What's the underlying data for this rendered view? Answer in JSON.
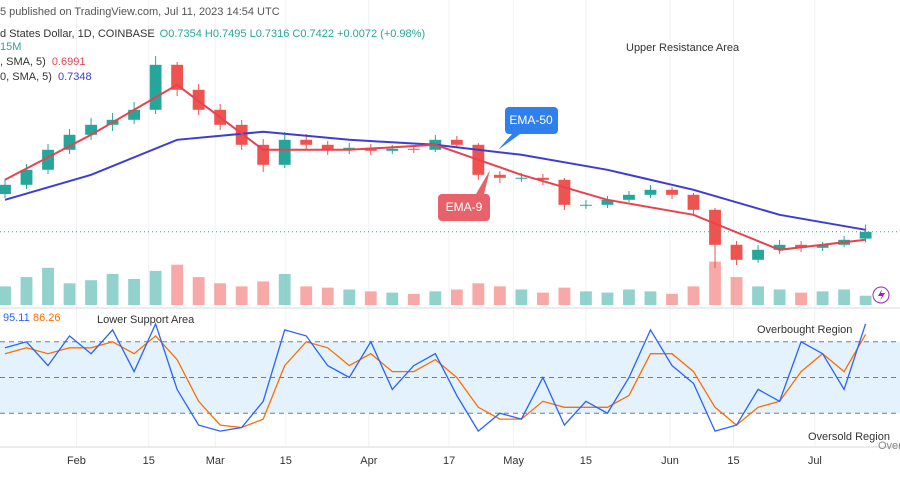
{
  "chart_data": {
    "type": "candlestick",
    "header": {
      "published": "5 published on TradingView.com, Jul 11, 2023 14:54 UTC",
      "symbol": "d States Dollar, 1D, COINBASE",
      "ohlc": "O0.7354 H0.7495 L0.7316 C0.7422 +0.0072 (+0.98%)",
      "volume": "15M",
      "ema_fast_label": ", SMA, 5)",
      "ema_fast_value": "0.6991",
      "ema_slow_label": "0, SMA, 5)",
      "ema_slow_value": "0.7348",
      "stoch_k_value": "95.11",
      "stoch_d_value": "86.26"
    },
    "annotations": {
      "upper": "Upper Resistance Area",
      "ema50": "EMA-50",
      "ema9": "EMA-9",
      "lower": "Lower Support Area",
      "overbought": "Overbought Region",
      "oversold": "Oversold Region",
      "cut": "Over"
    },
    "xlim": [
      0,
      40.9
    ],
    "xticks": [
      {
        "value": 3.32,
        "label": "Feb"
      },
      {
        "value": 6.68,
        "label": "15"
      },
      {
        "value": 9.77,
        "label": "Mar"
      },
      {
        "value": 13.05,
        "label": "15"
      },
      {
        "value": 16.91,
        "label": "Apr"
      },
      {
        "value": 20.64,
        "label": "17"
      },
      {
        "value": 23.64,
        "label": "May"
      },
      {
        "value": 27,
        "label": "15"
      },
      {
        "value": 30.91,
        "label": "Jun"
      },
      {
        "value": 33.86,
        "label": "15"
      },
      {
        "value": 37.64,
        "label": "Jul"
      }
    ],
    "ylim": [
      0.68,
      0.945
    ],
    "up_color": "#26a69a",
    "down_color": "#ef5350",
    "open": [
      0.78,
      0.7892,
      0.8042,
      0.8242,
      0.8392,
      0.8492,
      0.8542,
      0.8642,
      0.9092,
      0.8842,
      0.8642,
      0.8492,
      0.8292,
      0.8092,
      0.8342,
      0.8292,
      0.8242,
      0.8262,
      0.8232,
      0.8252,
      0.8242,
      0.8342,
      0.8292,
      0.7992,
      0.7962,
      0.7962,
      0.7942,
      0.7692,
      0.7692,
      0.7742,
      0.7792,
      0.7842,
      0.7792,
      0.7642,
      0.7292,
      0.7142,
      0.7242,
      0.7292,
      0.7262,
      0.7292,
      0.7354
    ],
    "high": [
      0.795,
      0.81,
      0.83,
      0.845,
      0.856,
      0.861,
      0.872,
      0.918,
      0.912,
      0.89,
      0.87,
      0.854,
      0.835,
      0.842,
      0.84,
      0.833,
      0.831,
      0.83,
      0.829,
      0.829,
      0.839,
      0.838,
      0.831,
      0.803,
      0.801,
      0.8,
      0.796,
      0.774,
      0.778,
      0.783,
      0.789,
      0.787,
      0.781,
      0.766,
      0.733,
      0.729,
      0.734,
      0.733,
      0.732,
      0.738,
      0.7495
    ],
    "low": [
      0.776,
      0.785,
      0.8,
      0.82,
      0.834,
      0.843,
      0.85,
      0.86,
      0.878,
      0.859,
      0.844,
      0.824,
      0.802,
      0.806,
      0.824,
      0.819,
      0.82,
      0.819,
      0.82,
      0.821,
      0.822,
      0.826,
      0.794,
      0.791,
      0.792,
      0.789,
      0.764,
      0.765,
      0.766,
      0.772,
      0.776,
      0.775,
      0.759,
      0.706,
      0.709,
      0.711,
      0.72,
      0.722,
      0.723,
      0.727,
      0.7316
    ],
    "close": [
      0.7892,
      0.8042,
      0.8242,
      0.8392,
      0.8492,
      0.8542,
      0.8642,
      0.9092,
      0.8842,
      0.8642,
      0.8492,
      0.8292,
      0.8092,
      0.8342,
      0.8292,
      0.8242,
      0.8262,
      0.8232,
      0.8252,
      0.8242,
      0.8342,
      0.8292,
      0.7992,
      0.7962,
      0.7962,
      0.7942,
      0.7692,
      0.7692,
      0.7742,
      0.7792,
      0.7842,
      0.7792,
      0.7642,
      0.7292,
      0.7142,
      0.7242,
      0.7292,
      0.7262,
      0.7292,
      0.7342,
      0.7422
    ],
    "series": [
      {
        "name": "EMA-50",
        "color": "#3d3dd6",
        "x": [
          0,
          4,
          8,
          12,
          16,
          20,
          24,
          28,
          32,
          36,
          40
        ],
        "values": [
          0.7742,
          0.7992,
          0.8342,
          0.8422,
          0.8342,
          0.8292,
          0.8192,
          0.8042,
          0.7842,
          0.7592,
          0.7442
        ]
      },
      {
        "name": "EMA-9",
        "color": "#e8424f",
        "x": [
          0,
          4,
          8,
          12,
          16,
          20,
          24,
          28,
          32,
          36,
          40
        ],
        "values": [
          0.7942,
          0.8392,
          0.8892,
          0.8242,
          0.8242,
          0.8292,
          0.7992,
          0.7742,
          0.7592,
          0.7242,
          0.7342
        ]
      }
    ],
    "volume": {
      "ylim": [
        0,
        100
      ],
      "values": [
        30,
        45,
        60,
        35,
        40,
        50,
        42,
        55,
        65,
        45,
        35,
        30,
        38,
        50,
        30,
        28,
        25,
        22,
        20,
        18,
        22,
        25,
        35,
        30,
        25,
        20,
        28,
        22,
        20,
        25,
        22,
        18,
        30,
        70,
        45,
        30,
        25,
        20,
        22,
        25,
        15
      ]
    },
    "stoch": {
      "ylim": [
        0,
        100
      ],
      "levels": [
        80,
        50,
        20
      ],
      "band_color": "#e3f2fd",
      "series": [
        {
          "name": "K",
          "color": "#2962ff",
          "values": [
            75,
            80,
            60,
            85,
            70,
            90,
            55,
            95,
            40,
            10,
            5,
            8,
            30,
            90,
            85,
            60,
            50,
            80,
            40,
            60,
            70,
            35,
            5,
            20,
            15,
            50,
            10,
            30,
            20,
            50,
            90,
            60,
            45,
            5,
            10,
            40,
            30,
            80,
            70,
            40,
            95.11
          ]
        },
        {
          "name": "D",
          "color": "#ff6d00",
          "values": [
            70,
            75,
            70,
            75,
            75,
            80,
            70,
            85,
            65,
            30,
            10,
            8,
            15,
            60,
            80,
            75,
            60,
            70,
            55,
            55,
            65,
            50,
            25,
            15,
            15,
            30,
            25,
            25,
            25,
            35,
            70,
            70,
            55,
            25,
            10,
            25,
            30,
            55,
            70,
            55,
            86.26
          ]
        }
      ]
    }
  }
}
